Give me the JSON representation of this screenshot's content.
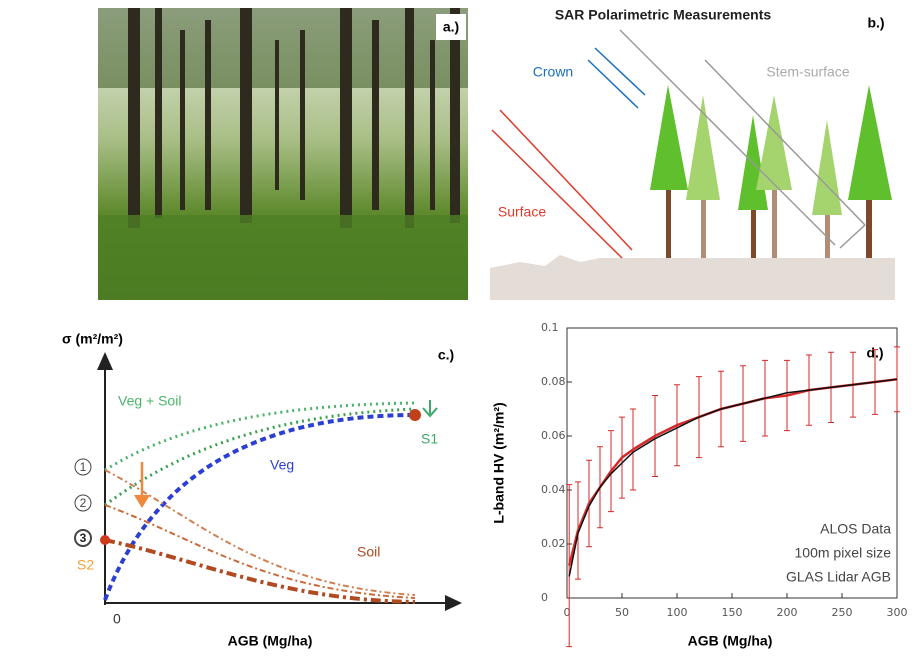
{
  "panel_a": {
    "label": "a.)"
  },
  "panel_b": {
    "title": "SAR Polarimetric Measurements",
    "label": "b.)",
    "crown": "Crown",
    "stem_surface": "Stem-surface",
    "surface": "Surface"
  },
  "panel_c": {
    "y_label": "σ (m²/m²)",
    "label": "c.)",
    "veg_soil": "Veg + Soil",
    "veg": "Veg",
    "soil": "Soil",
    "s1": "S1",
    "s2": "S2",
    "markers": [
      "1",
      "2",
      "3"
    ],
    "origin": "0",
    "x_label": "AGB (Mg/ha)"
  },
  "chart_data": {
    "type": "line",
    "label": "d.)",
    "x_label": "AGB (Mg/ha)",
    "y_label": "L-band HV (m²/m²)",
    "annotations": [
      "ALOS Data",
      "100m pixel size",
      "GLAS Lidar AGB"
    ],
    "x": [
      2,
      10,
      20,
      30,
      40,
      50,
      60,
      80,
      100,
      120,
      140,
      160,
      180,
      200,
      220,
      240,
      260,
      280,
      300
    ],
    "series": [
      {
        "color": "#d62a2a",
        "values": [
          0.012,
          0.025,
          0.035,
          0.041,
          0.047,
          0.052,
          0.055,
          0.06,
          0.064,
          0.067,
          0.07,
          0.072,
          0.074,
          0.075,
          0.077,
          0.078,
          0.079,
          0.08,
          0.081
        ],
        "errors": [
          0.03,
          0.018,
          0.016,
          0.015,
          0.015,
          0.015,
          0.015,
          0.015,
          0.015,
          0.015,
          0.014,
          0.014,
          0.014,
          0.013,
          0.013,
          0.013,
          0.012,
          0.012,
          0.012
        ]
      },
      {
        "color": "#111111",
        "values": [
          0.008,
          0.024,
          0.034,
          0.041,
          0.046,
          0.05,
          0.054,
          0.059,
          0.063,
          0.067,
          0.07,
          0.072,
          0.074,
          0.076,
          0.077,
          0.078,
          0.079,
          0.08,
          0.081
        ]
      }
    ],
    "xlim": [
      0,
      300
    ],
    "xticks": [
      0,
      50,
      100,
      150,
      200,
      250,
      300
    ],
    "ylim": [
      0,
      0.1
    ],
    "yticks": [
      0,
      0.02,
      0.04,
      0.06,
      0.08,
      0.1
    ]
  }
}
